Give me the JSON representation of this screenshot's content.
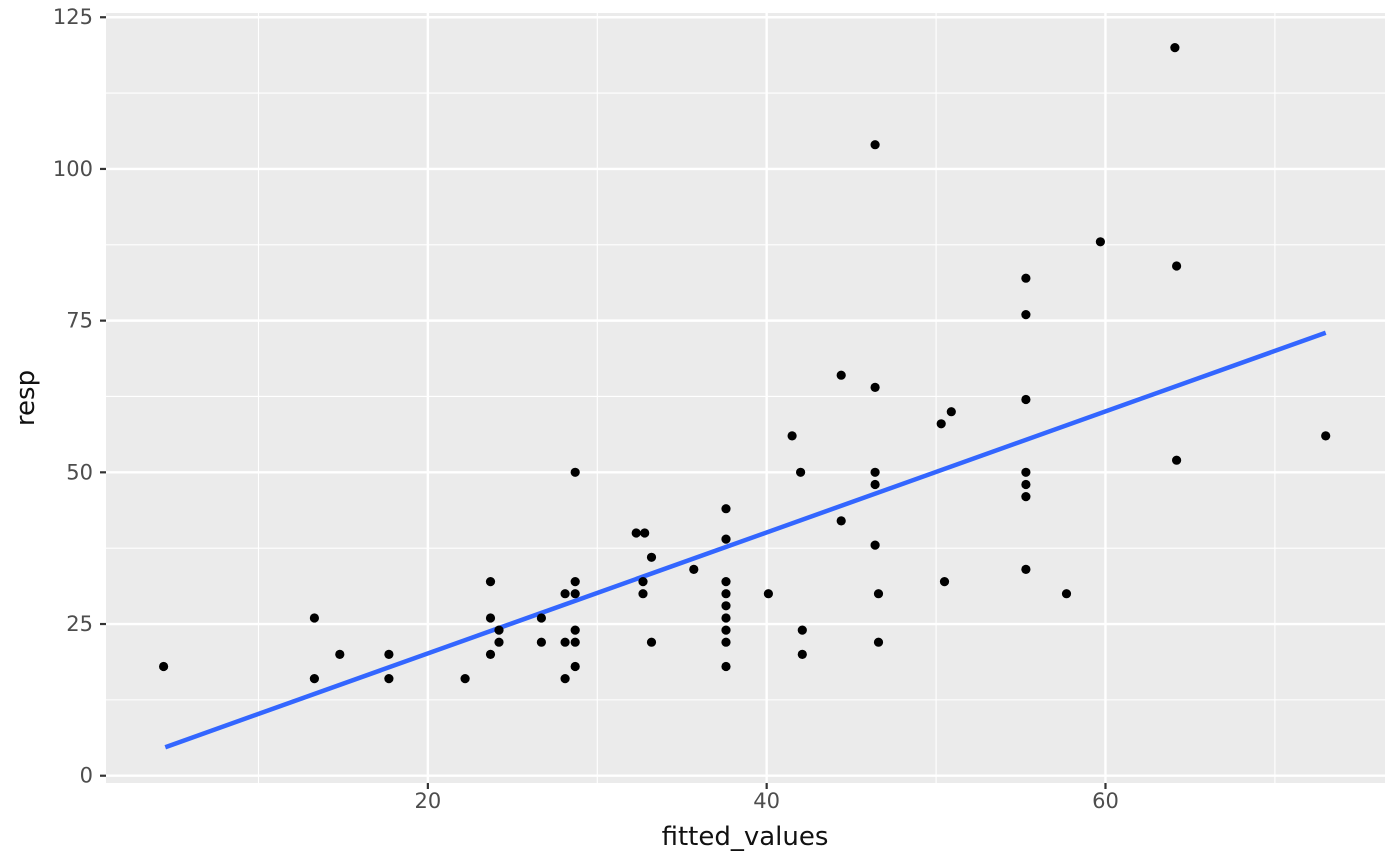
{
  "chart_data": {
    "type": "scatter",
    "title": "",
    "xlabel": "fitted_values",
    "ylabel": "resp",
    "x_ticks": [
      20,
      40,
      60
    ],
    "y_ticks": [
      0,
      25,
      50,
      75,
      100,
      125
    ],
    "x_minor_gridlines": [
      10,
      30,
      50,
      70
    ],
    "y_minor_gridlines": [
      12.5,
      37.5,
      62.5,
      87.5,
      112.5
    ],
    "xlim": [
      1.0,
      76.5
    ],
    "ylim": [
      -1.2,
      125.7
    ],
    "grid": "major-and-minor",
    "legend_position": "none",
    "points": [
      [
        4.4,
        18
      ],
      [
        13.3,
        26
      ],
      [
        13.3,
        16
      ],
      [
        14.8,
        20
      ],
      [
        17.7,
        20
      ],
      [
        17.7,
        16
      ],
      [
        22.2,
        16
      ],
      [
        23.7,
        32
      ],
      [
        23.7,
        26
      ],
      [
        24.2,
        24
      ],
      [
        24.2,
        22
      ],
      [
        23.7,
        20
      ],
      [
        26.7,
        26
      ],
      [
        26.7,
        22
      ],
      [
        28.1,
        30
      ],
      [
        28.1,
        22
      ],
      [
        28.1,
        16
      ],
      [
        28.7,
        50
      ],
      [
        28.7,
        32
      ],
      [
        28.7,
        30
      ],
      [
        28.7,
        24
      ],
      [
        28.7,
        22
      ],
      [
        28.7,
        18
      ],
      [
        32.3,
        40
      ],
      [
        32.8,
        40
      ],
      [
        32.7,
        32
      ],
      [
        32.7,
        30
      ],
      [
        33.2,
        36
      ],
      [
        33.2,
        22
      ],
      [
        35.7,
        34
      ],
      [
        37.6,
        44
      ],
      [
        37.6,
        39
      ],
      [
        37.6,
        32
      ],
      [
        37.6,
        30
      ],
      [
        37.6,
        28
      ],
      [
        37.6,
        26
      ],
      [
        37.6,
        24
      ],
      [
        37.6,
        22
      ],
      [
        37.6,
        18
      ],
      [
        40.1,
        30
      ],
      [
        41.5,
        56
      ],
      [
        42.0,
        50
      ],
      [
        42.1,
        24
      ],
      [
        42.1,
        20
      ],
      [
        44.4,
        66
      ],
      [
        44.4,
        42
      ],
      [
        46.4,
        104
      ],
      [
        46.4,
        64
      ],
      [
        46.4,
        50
      ],
      [
        46.4,
        48
      ],
      [
        46.4,
        38
      ],
      [
        46.6,
        30
      ],
      [
        46.6,
        22
      ],
      [
        50.3,
        58
      ],
      [
        50.9,
        60
      ],
      [
        50.5,
        32
      ],
      [
        55.3,
        82
      ],
      [
        55.3,
        76
      ],
      [
        55.3,
        62
      ],
      [
        55.3,
        50
      ],
      [
        55.3,
        48
      ],
      [
        55.3,
        46
      ],
      [
        55.3,
        34
      ],
      [
        57.7,
        30
      ],
      [
        59.7,
        88
      ],
      [
        64.1,
        120
      ],
      [
        64.2,
        84
      ],
      [
        64.2,
        52
      ],
      [
        73.0,
        56
      ]
    ],
    "trend_line": {
      "x1": 4.5,
      "y1": 4.7,
      "x2": 73.0,
      "y2": 73.0
    },
    "style": {
      "point_color": "#000000",
      "point_radius": 4.6,
      "line_color": "#3366FF",
      "line_width": 4.5,
      "panel_bg": "#EBEBEB",
      "grid_color": "#FFFFFF",
      "major_grid_width": 2.4,
      "minor_grid_width": 1.1,
      "tick_mark_color": "#333333",
      "tick_label_color": "#4D4D4D",
      "axis_title_color": "#111111",
      "outer_bg": "#FFFFFF"
    }
  }
}
